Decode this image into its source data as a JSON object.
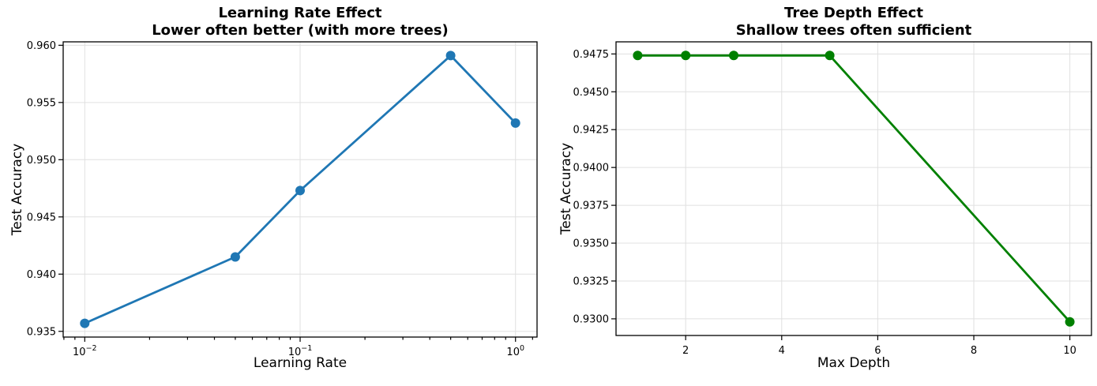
{
  "style": {
    "background": "#ffffff",
    "grid_color": "#e0e0e0",
    "axis_color": "#000000",
    "text_color": "#000000"
  },
  "chart_data": [
    {
      "type": "line",
      "title": "Learning Rate Effect",
      "subtitle": "Lower often better (with more trees)",
      "xlabel": "Learning Rate",
      "ylabel": "Test Accuracy",
      "color": "#1f77b4",
      "marker": "circle",
      "grid": true,
      "legend": null,
      "x_scale": "log",
      "x": [
        0.01,
        0.05,
        0.1,
        0.5,
        1.0
      ],
      "y": [
        0.9357,
        0.9415,
        0.9473,
        0.9591,
        0.9532
      ],
      "xlim": [
        0.00794,
        1.259
      ],
      "ylim": [
        0.9345,
        0.9603
      ],
      "x_ticks": [
        0.01,
        0.1,
        1.0
      ],
      "x_tick_labels": [
        "10^−2",
        "10^−1",
        "10^0"
      ],
      "x_minor_ticks": [
        0.008,
        0.009,
        0.02,
        0.03,
        0.04,
        0.05,
        0.06,
        0.07,
        0.08,
        0.09,
        0.2,
        0.3,
        0.4,
        0.5,
        0.6,
        0.7,
        0.8,
        0.9,
        1.2
      ],
      "y_ticks": [
        0.935,
        0.94,
        0.945,
        0.95,
        0.955,
        0.96
      ],
      "y_tick_labels": [
        "0.935",
        "0.940",
        "0.945",
        "0.950",
        "0.955",
        "0.960"
      ]
    },
    {
      "type": "line",
      "title": "Tree Depth Effect",
      "subtitle": "Shallow trees often sufficient",
      "xlabel": "Max Depth",
      "ylabel": "Test Accuracy",
      "color": "#008000",
      "marker": "circle",
      "grid": true,
      "legend": null,
      "x_scale": "linear",
      "x": [
        1,
        2,
        3,
        5,
        10
      ],
      "y": [
        0.9474,
        0.9474,
        0.9474,
        0.9474,
        0.9298
      ],
      "xlim": [
        0.55,
        10.45
      ],
      "ylim": [
        0.9289,
        0.9483
      ],
      "x_ticks": [
        2,
        4,
        6,
        8,
        10
      ],
      "x_tick_labels": [
        "2",
        "4",
        "6",
        "8",
        "10"
      ],
      "x_minor_ticks": [],
      "y_ticks": [
        0.93,
        0.9325,
        0.935,
        0.9375,
        0.94,
        0.9425,
        0.945,
        0.9475
      ],
      "y_tick_labels": [
        "0.9300",
        "0.9325",
        "0.9350",
        "0.9375",
        "0.9400",
        "0.9425",
        "0.9450",
        "0.9475"
      ]
    }
  ]
}
